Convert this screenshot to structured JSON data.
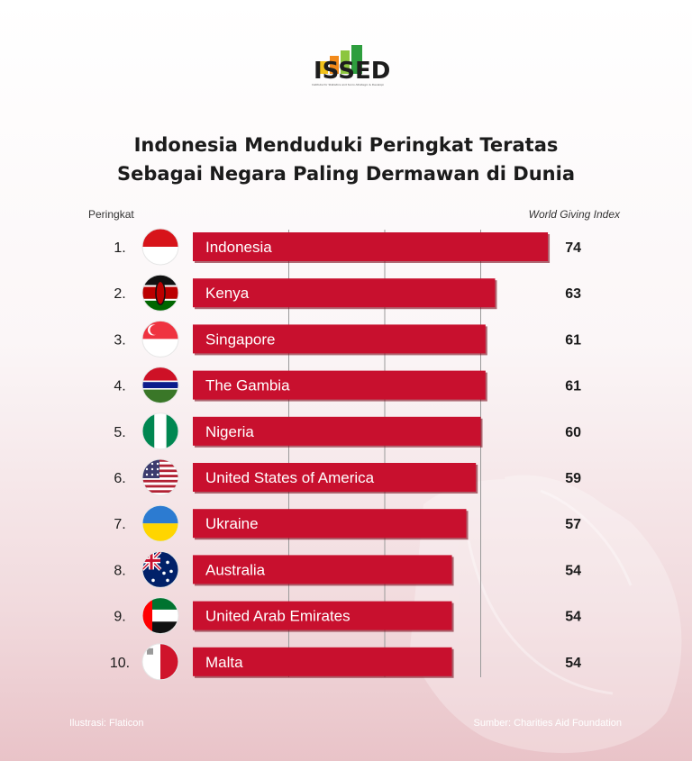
{
  "logo": {
    "text": "ISSED",
    "tagline": "Institute for Statistics and Socio-Strategic & Development"
  },
  "header": {
    "title_line1": "Indonesia Menduduki Peringkat Teratas",
    "title_line2": "Sebagai Negara Paling Dermawan di Dunia"
  },
  "columns": {
    "rank_label": "Peringkat",
    "metric_label": "World Giving Index"
  },
  "footer": {
    "left": "Ilustrasi: Flaticon",
    "right": "Sumber: Charities Aid Foundation"
  },
  "colors": {
    "bar": "#c8102e",
    "bar_shadow": "#7a0a1a",
    "gridline": "#9a9a9a"
  },
  "chart_data": {
    "type": "bar",
    "orientation": "horizontal",
    "xlabel": "World Giving Index",
    "ylabel": "Peringkat",
    "xlim": [
      0,
      80
    ],
    "grid": true,
    "categories": [
      "Indonesia",
      "Kenya",
      "Singapore",
      "The Gambia",
      "Nigeria",
      "United States of America",
      "Ukraine",
      "Australia",
      "United Arab Emirates",
      "Malta"
    ],
    "ranks": [
      "1.",
      "2.",
      "3.",
      "4.",
      "5.",
      "6.",
      "7.",
      "8.",
      "9.",
      "10."
    ],
    "flags": [
      "flag-indonesia-icon",
      "flag-kenya-icon",
      "flag-singapore-icon",
      "flag-gambia-icon",
      "flag-nigeria-icon",
      "flag-usa-icon",
      "flag-ukraine-icon",
      "flag-australia-icon",
      "flag-uae-icon",
      "flag-malta-icon"
    ],
    "values": [
      74,
      63,
      61,
      61,
      60,
      59,
      57,
      54,
      54,
      54
    ]
  }
}
